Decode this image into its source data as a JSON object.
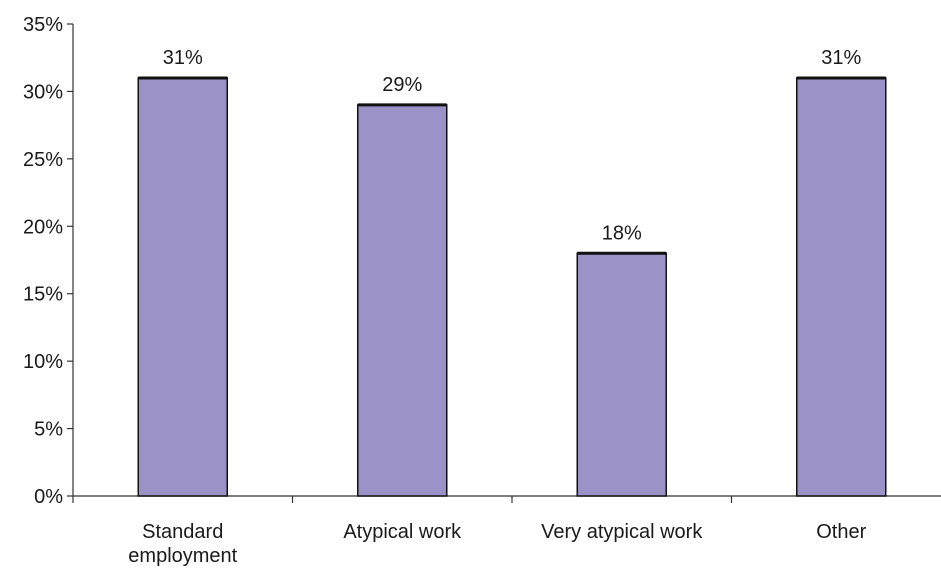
{
  "chart_data": {
    "type": "bar",
    "categories": [
      "Standard\nemployment",
      "Atypical work",
      "Very atypical work",
      "Other"
    ],
    "values": [
      31,
      29,
      18,
      31
    ],
    "value_labels": [
      "31%",
      "29%",
      "18%",
      "31%"
    ],
    "ylim": [
      0,
      35
    ],
    "yticks": [
      0,
      5,
      10,
      15,
      20,
      25,
      30,
      35
    ],
    "ytick_labels": [
      "0%",
      "5%",
      "10%",
      "15%",
      "20%",
      "25%",
      "30%",
      "35%"
    ],
    "title": "",
    "xlabel": "",
    "ylabel": "",
    "grid": false,
    "bar_color": "#9b93c7"
  }
}
